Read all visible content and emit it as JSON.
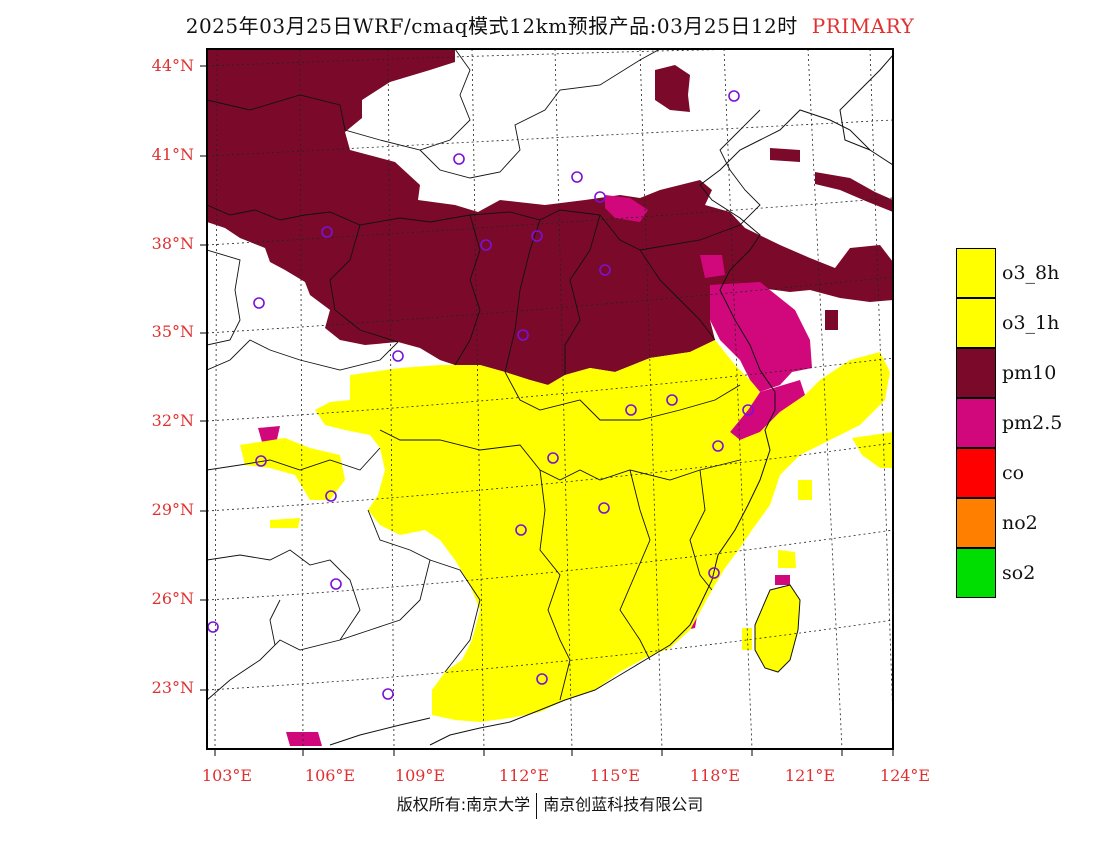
{
  "title": {
    "main": "2025年03月25日WRF/cmaq模式12km预报产品:03月25日12时",
    "tag": "PRIMARY"
  },
  "map": {
    "lat_labels": [
      "44°N",
      "41°N",
      "38°N",
      "35°N",
      "32°N",
      "29°N",
      "26°N",
      "23°N"
    ],
    "lon_labels": [
      "103°E",
      "106°E",
      "109°E",
      "112°E",
      "115°E",
      "118°E",
      "121°E",
      "124°E"
    ],
    "dominant_regions": [
      {
        "pollutant": "pm10",
        "area": "north China (Inner Mongolia, Shanxi, Shaanxi, Hebei, Henan)"
      },
      {
        "pollutant": "o3_8h",
        "area": "central and south-east China, Taiwan"
      },
      {
        "pollutant": "pm2.5",
        "area": "Jiangsu/Anhui and Beijing-Tianjin patches, coastal Fujian"
      }
    ],
    "colors": {
      "pm10": "#7b0a2a",
      "pm25": "#d1087c",
      "o3": "#ffff00",
      "marker": "#7a12d6",
      "frame": "#000000",
      "label": "#e03030"
    }
  },
  "legend": {
    "items": [
      {
        "label": "o3_8h",
        "color": "#ffff00"
      },
      {
        "label": "o3_1h",
        "color": "#ffff00"
      },
      {
        "label": "pm10",
        "color": "#7b0a2a"
      },
      {
        "label": "pm2.5",
        "color": "#d1087c"
      },
      {
        "label": "co",
        "color": "#ff0000"
      },
      {
        "label": "no2",
        "color": "#ff7f00"
      },
      {
        "label": "so2",
        "color": "#00dd00"
      }
    ]
  },
  "footer": {
    "left": "版权所有:南京大学",
    "right": "南京创蓝科技有限公司"
  }
}
